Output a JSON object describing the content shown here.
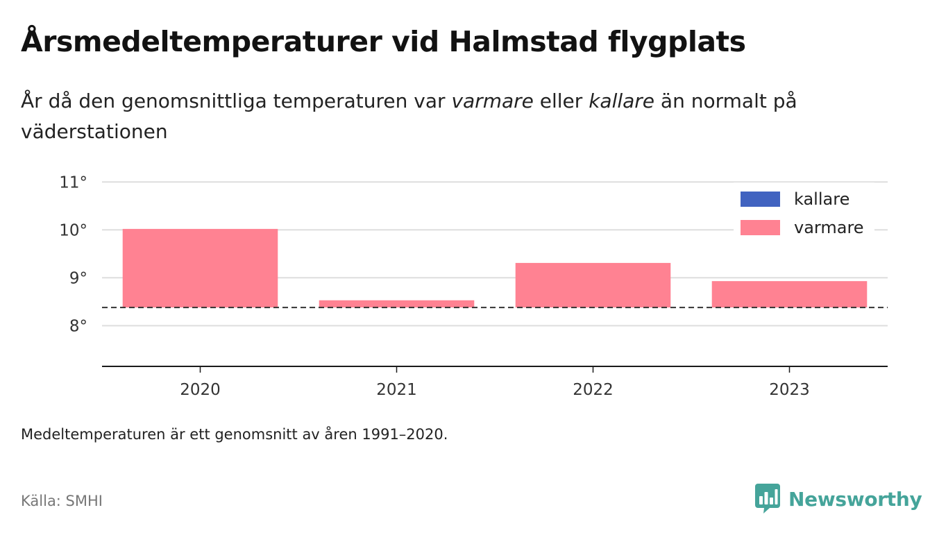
{
  "header": {
    "title": "Årsmedeltemperaturer vid Halmstad flygplats",
    "subtitle_parts": [
      "År då den genomsnittliga temperaturen var ",
      "varmare",
      " eller ",
      "kallare",
      " än normalt på väderstationen"
    ]
  },
  "chart_data": {
    "type": "bar",
    "categories": [
      "2020",
      "2021",
      "2022",
      "2023"
    ],
    "baseline": 8.38,
    "values": [
      10.02,
      8.53,
      9.31,
      8.93
    ],
    "series": [
      {
        "name": "kallare",
        "color": "#4163c0"
      },
      {
        "name": "varmare",
        "color": "#ff8292"
      }
    ],
    "ylim": [
      7.15,
      11.25
    ],
    "yticks": [
      8,
      9,
      10,
      11
    ],
    "ytick_labels": [
      "8°",
      "9°",
      "10°",
      "11°"
    ],
    "grid": true,
    "legend_position": "top-right",
    "reference_line": "dashed"
  },
  "footer": {
    "note": "Medeltemperaturen är ett genomsnitt av åren 1991–2020.",
    "source": "Källa: SMHI",
    "brand": "Newsworthy"
  },
  "colors": {
    "brand": "#45a49a",
    "grid": "#dedede",
    "axis": "#1a1a1a",
    "reference_line": "#333333"
  }
}
